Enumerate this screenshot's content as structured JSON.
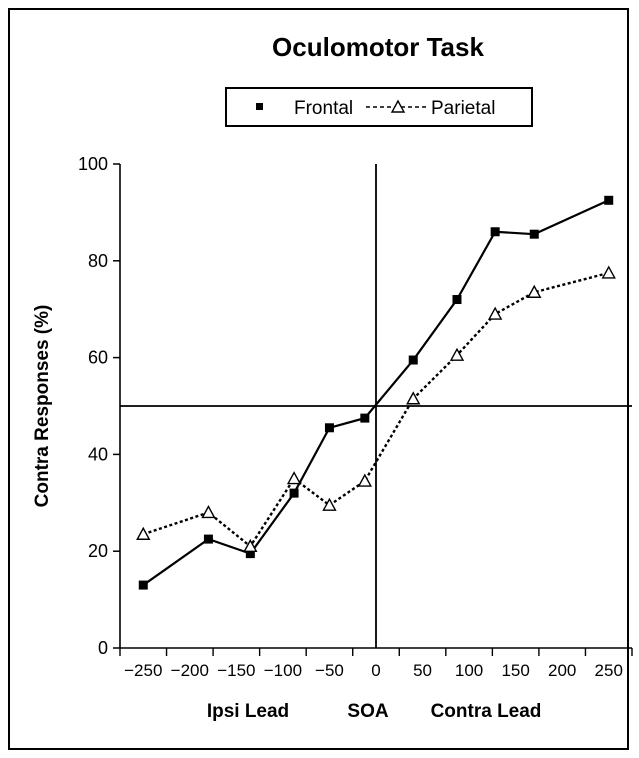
{
  "chart_data": {
    "type": "line",
    "title": "Oculomotor Task",
    "ylabel": "Contra Responses (%)",
    "xlabel_parts": [
      "Ipsi Lead",
      "SOA",
      "Contra Lead"
    ],
    "x": [
      -250,
      -200,
      -150,
      -100,
      -50,
      0,
      50,
      100,
      150,
      200,
      250
    ],
    "x_tick_labels": [
      "-250",
      "-200",
      "-150",
      "-100",
      "-50",
      "0",
      "50",
      "100",
      "150",
      "200",
      "250"
    ],
    "y_ticks": [
      0,
      20,
      40,
      60,
      80,
      100
    ],
    "ylim": [
      0,
      100
    ],
    "xlim": [
      -275,
      275
    ],
    "reference_lines": {
      "x": 0,
      "y": 50
    },
    "grid": false,
    "legend_position": "top",
    "series": [
      {
        "name": "Frontal",
        "style": "solid",
        "marker": "square",
        "points": [
          [
            -250,
            13
          ],
          [
            -180,
            22.5
          ],
          [
            -135,
            19.5
          ],
          [
            -88,
            32
          ],
          [
            -50,
            45.5
          ],
          [
            -12,
            47.5
          ],
          [
            40,
            59.5
          ],
          [
            87,
            72
          ],
          [
            128,
            86
          ],
          [
            170,
            85.5
          ],
          [
            250,
            92.5
          ]
        ]
      },
      {
        "name": "Parietal",
        "style": "dashed",
        "marker": "triangle",
        "points": [
          [
            -250,
            23.5
          ],
          [
            -180,
            28
          ],
          [
            -135,
            21
          ],
          [
            -88,
            35
          ],
          [
            -50,
            29.5
          ],
          [
            -12,
            34.5
          ],
          [
            40,
            51.5
          ],
          [
            87,
            60.5
          ],
          [
            128,
            69
          ],
          [
            170,
            73.5
          ],
          [
            250,
            77.5
          ]
        ]
      }
    ]
  }
}
